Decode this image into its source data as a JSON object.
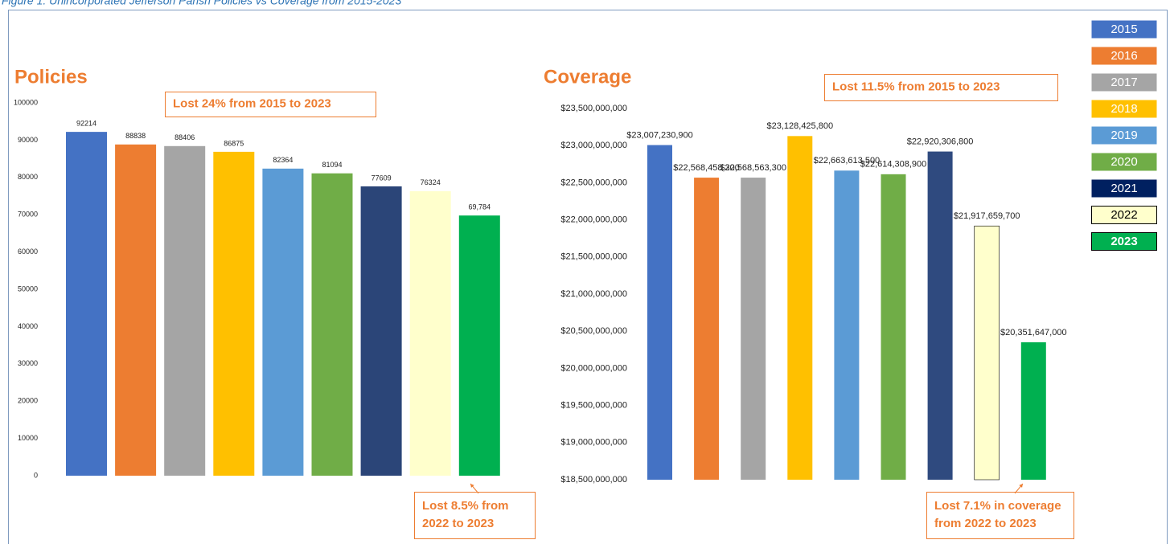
{
  "caption": "Figure 1: Unincorporated Jefferson Parish Policies vs Coverage from 2015-2023",
  "legend": [
    {
      "label": "2015",
      "color": "#4472c4",
      "text_color": "#ffffff"
    },
    {
      "label": "2016",
      "color": "#ed7d31",
      "text_color": "#ffffff"
    },
    {
      "label": "2017",
      "color": "#a5a5a5",
      "text_color": "#ffffff"
    },
    {
      "label": "2018",
      "color": "#ffc000",
      "text_color": "#ffffff"
    },
    {
      "label": "2019",
      "color": "#5b9bd5",
      "text_color": "#ffffff"
    },
    {
      "label": "2020",
      "color": "#70ad47",
      "text_color": "#ffffff"
    },
    {
      "label": "2021",
      "color": "#002060",
      "text_color": "#ffffff"
    },
    {
      "label": "2022",
      "color": "#ffffcc",
      "text_color": "#000000"
    },
    {
      "label": "2023",
      "color": "#00b050",
      "text_color": "#ffffff"
    }
  ],
  "chart_data": [
    {
      "type": "bar",
      "title": "Policies",
      "values": [
        92214,
        88838,
        88406,
        86875,
        82364,
        81094,
        77609,
        76324,
        69784
      ],
      "value_labels": [
        "92214",
        "88838",
        "88406",
        "86875",
        "82364",
        "81094",
        "77609",
        "76324",
        "69,784"
      ],
      "colors": [
        "#4472c4",
        "#ed7d31",
        "#a5a5a5",
        "#ffc000",
        "#5b9bd5",
        "#70ad47",
        "#2b4578",
        "#ffffcc",
        "#00b050"
      ],
      "ylim": [
        0,
        100000
      ],
      "yticks": [
        0,
        10000,
        20000,
        30000,
        40000,
        50000,
        60000,
        70000,
        80000,
        90000,
        100000
      ],
      "grid": false,
      "annotations": [
        {
          "lines": [
            "Lost 24% from 2015 to 2023"
          ]
        },
        {
          "lines": [
            "Lost 8.5% from",
            "2022 to 2023"
          ]
        }
      ]
    },
    {
      "type": "bar",
      "title": "Coverage",
      "values": [
        23007230900,
        22568458300,
        22568563300,
        23128425800,
        22663613500,
        22614308900,
        22920306800,
        21917659700,
        20351647000
      ],
      "value_labels": [
        "$23,007,230,900",
        "$22,568,458,300",
        "$22,568,563,300",
        "$23,128,425,800",
        "$22,663,613,500",
        "$22,614,308,900",
        "$22,920,306,800",
        "$21,917,659,700",
        "$20,351,647,000"
      ],
      "colors": [
        "#4472c4",
        "#ed7d31",
        "#a5a5a5",
        "#ffc000",
        "#5b9bd5",
        "#70ad47",
        "#2f4a7f",
        "#ffffcc",
        "#00b050"
      ],
      "ylim": [
        18500000000,
        23500000000
      ],
      "yticks": [
        {
          "value": 18500000000,
          "label": "$18,500,000,000"
        },
        {
          "value": 19000000000,
          "label": "$19,000,000,000"
        },
        {
          "value": 19500000000,
          "label": "$19,500,000,000"
        },
        {
          "value": 20000000000,
          "label": "$20,000,000,000"
        },
        {
          "value": 20500000000,
          "label": "$20,500,000,000"
        },
        {
          "value": 21000000000,
          "label": "$21,000,000,000"
        },
        {
          "value": 21500000000,
          "label": "$21,500,000,000"
        },
        {
          "value": 22000000000,
          "label": "$22,000,000,000"
        },
        {
          "value": 22500000000,
          "label": "$22,500,000,000"
        },
        {
          "value": 23000000000,
          "label": "$23,000,000,000"
        },
        {
          "value": 23500000000,
          "label": "$23,500,000,000"
        }
      ],
      "grid": false,
      "annotations": [
        {
          "lines": [
            "Lost 11.5% from 2015 to 2023"
          ]
        },
        {
          "lines": [
            "Lost 7.1% in coverage",
            "from 2022 to 2023"
          ]
        }
      ]
    }
  ]
}
